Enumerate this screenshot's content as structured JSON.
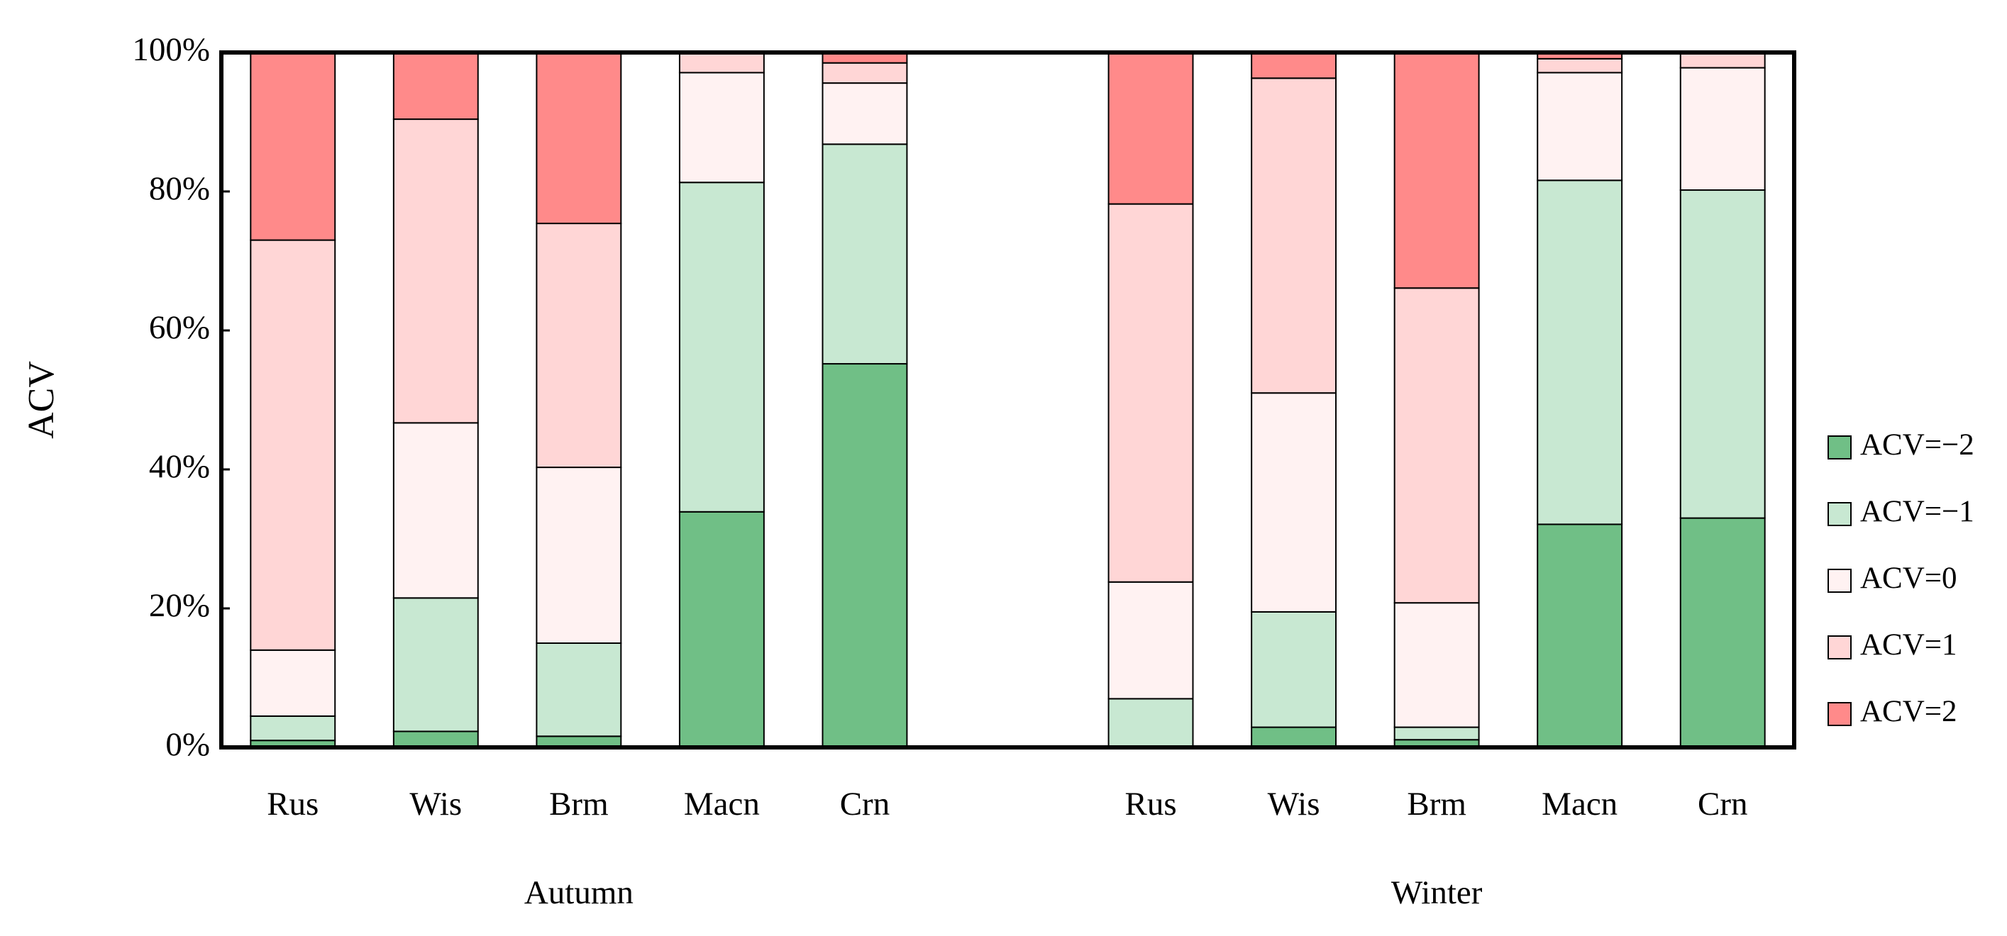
{
  "chart_data": {
    "type": "stacked-bar",
    "y_label": "ACV",
    "categories": [
      "Rus",
      "Wis",
      "Brm",
      "Macn",
      "Crn",
      "Rus",
      "Wis",
      "Brm",
      "Macn",
      "Crn"
    ],
    "category_groups": [
      "Autumn",
      "Winter"
    ],
    "series": [
      {
        "name": "ACV=−2",
        "color": "#70bf86",
        "values": [
          1,
          2.3,
          1.6,
          33.9,
          55.2,
          0,
          2.9,
          1.1,
          32.1,
          33
        ]
      },
      {
        "name": "ACV=−1",
        "color": "#c8e8d2",
        "values": [
          3.5,
          19.2,
          13.4,
          47.4,
          31.6,
          7,
          16.6,
          1.8,
          49.5,
          47.2
        ]
      },
      {
        "name": "ACV=0",
        "color": "#fff2f2",
        "values": [
          9.5,
          25.2,
          25.3,
          15.8,
          8.8,
          16.8,
          31.5,
          17.9,
          15.5,
          17.6
        ]
      },
      {
        "name": "ACV=1",
        "color": "#ffd6d6",
        "values": [
          59,
          43.7,
          35.1,
          2.9,
          2.9,
          54.4,
          45.3,
          45.3,
          2,
          2.2
        ]
      },
      {
        "name": "ACV=2",
        "color": "#ff8a8a",
        "values": [
          27,
          9.6,
          24.6,
          0,
          1.5,
          21.8,
          3.7,
          33.9,
          0.9,
          0
        ]
      }
    ],
    "ylim": [
      0,
      100
    ],
    "yticks": [
      {
        "value": 0,
        "label": "0%"
      },
      {
        "value": 20,
        "label": "20%"
      },
      {
        "value": 40,
        "label": "40%"
      },
      {
        "value": 60,
        "label": "60%"
      },
      {
        "value": 80,
        "label": "80%"
      },
      {
        "value": 100,
        "label": "100%"
      }
    ],
    "grid": false,
    "legend": "right"
  }
}
